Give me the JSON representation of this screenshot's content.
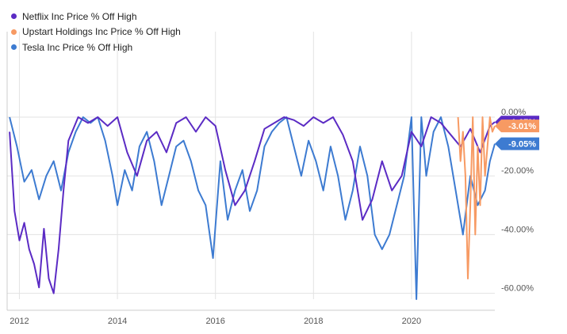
{
  "chart_data": {
    "type": "line",
    "title": "",
    "xlabel": "",
    "ylabel": "",
    "x_ticks": [
      "2012",
      "2014",
      "2016",
      "2018",
      "2020"
    ],
    "xlim": [
      2011.75,
      2021.7
    ],
    "y_ticks": [
      "0.00%",
      "-20.00%",
      "-40.00%",
      "-60.00%"
    ],
    "ylim": [
      -62,
      0
    ],
    "grid": true,
    "legend_position": "top-left",
    "series": [
      {
        "name": "Netflix Inc Price % Off High",
        "color": "#5b2bc4",
        "last_value_label": "-1.67%",
        "x": [
          2011.8,
          2011.9,
          2012.0,
          2012.1,
          2012.2,
          2012.3,
          2012.4,
          2012.5,
          2012.6,
          2012.7,
          2012.8,
          2012.9,
          2013.0,
          2013.2,
          2013.4,
          2013.6,
          2013.8,
          2014.0,
          2014.2,
          2014.4,
          2014.6,
          2014.8,
          2015.0,
          2015.2,
          2015.4,
          2015.6,
          2015.8,
          2016.0,
          2016.2,
          2016.4,
          2016.6,
          2016.8,
          2017.0,
          2017.2,
          2017.4,
          2017.6,
          2017.8,
          2018.0,
          2018.2,
          2018.4,
          2018.6,
          2018.8,
          2019.0,
          2019.2,
          2019.4,
          2019.6,
          2019.8,
          2020.0,
          2020.2,
          2020.4,
          2020.6,
          2020.8,
          2021.0,
          2021.2,
          2021.4,
          2021.6,
          2021.7
        ],
        "y": [
          -5,
          -32,
          -42,
          -36,
          -45,
          -50,
          -58,
          -38,
          -55,
          -60,
          -45,
          -25,
          -8,
          0,
          -2,
          0,
          -3,
          0,
          -12,
          -20,
          -8,
          -5,
          -12,
          -2,
          0,
          -5,
          0,
          -3,
          -18,
          -30,
          -25,
          -15,
          -4,
          -2,
          0,
          -1,
          -3,
          0,
          -2,
          0,
          -6,
          -15,
          -35,
          -28,
          -15,
          -25,
          -20,
          -5,
          -10,
          0,
          -2,
          -6,
          -10,
          -4,
          -12,
          -3,
          -1.67
        ]
      },
      {
        "name": "Upstart Holdings Inc Price % Off High",
        "color": "#f79a63",
        "last_value_label": "-3.01%",
        "x": [
          2020.95,
          2021.0,
          2021.05,
          2021.1,
          2021.15,
          2021.2,
          2021.25,
          2021.3,
          2021.35,
          2021.4,
          2021.45,
          2021.5,
          2021.55,
          2021.6,
          2021.65,
          2021.7
        ],
        "y": [
          0,
          -15,
          -5,
          -20,
          -55,
          -30,
          0,
          -40,
          -10,
          -30,
          0,
          -20,
          -10,
          0,
          -5,
          -3.01
        ]
      },
      {
        "name": "Tesla Inc Price % Off High",
        "color": "#3d7bd1",
        "last_value_label": "-9.05%",
        "x": [
          2011.8,
          2011.95,
          2012.1,
          2012.25,
          2012.4,
          2012.55,
          2012.7,
          2012.85,
          2013.0,
          2013.15,
          2013.3,
          2013.45,
          2013.6,
          2013.75,
          2013.9,
          2014.0,
          2014.15,
          2014.3,
          2014.45,
          2014.6,
          2014.75,
          2014.9,
          2015.05,
          2015.2,
          2015.35,
          2015.5,
          2015.65,
          2015.8,
          2015.95,
          2016.1,
          2016.25,
          2016.4,
          2016.55,
          2016.7,
          2016.85,
          2017.0,
          2017.15,
          2017.3,
          2017.45,
          2017.6,
          2017.75,
          2017.9,
          2018.05,
          2018.2,
          2018.35,
          2018.5,
          2018.65,
          2018.8,
          2018.95,
          2019.1,
          2019.25,
          2019.4,
          2019.55,
          2019.7,
          2019.85,
          2020.0,
          2020.1,
          2020.2,
          2020.3,
          2020.45,
          2020.6,
          2020.75,
          2020.9,
          2021.05,
          2021.2,
          2021.35,
          2021.5,
          2021.6,
          2021.7
        ],
        "y": [
          0,
          -10,
          -22,
          -18,
          -28,
          -20,
          -15,
          -25,
          -12,
          -5,
          0,
          -2,
          0,
          -8,
          -20,
          -30,
          -18,
          -25,
          -10,
          -5,
          -15,
          -30,
          -20,
          -10,
          -8,
          -15,
          -25,
          -30,
          -48,
          -15,
          -35,
          -25,
          -18,
          -32,
          -25,
          -10,
          -5,
          -2,
          0,
          -10,
          -20,
          -8,
          -15,
          -25,
          -10,
          -20,
          -35,
          -25,
          -10,
          -20,
          -40,
          -45,
          -40,
          -30,
          -20,
          0,
          -62,
          0,
          -20,
          -5,
          0,
          -10,
          -25,
          -40,
          -20,
          -30,
          -25,
          -15,
          -9.05
        ]
      }
    ]
  }
}
